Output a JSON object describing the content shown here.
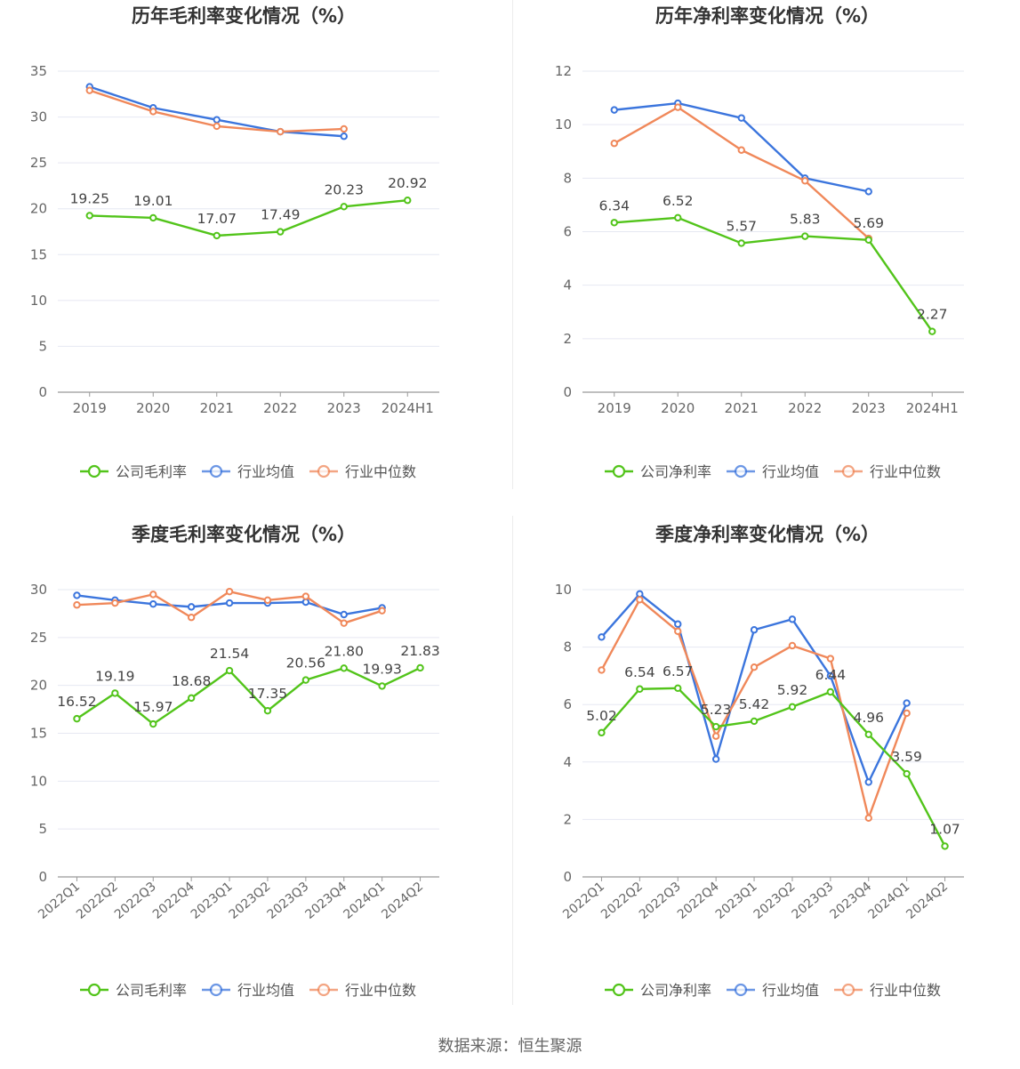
{
  "charts": [
    {
      "title": "历年毛利率变化情况（%）",
      "legend": [
        "公司毛利率",
        "行业均值",
        "行业中位数"
      ],
      "y_ticks": [
        0,
        5,
        10,
        15,
        20,
        25,
        30,
        35
      ],
      "x_labels": [
        "2019",
        "2020",
        "2021",
        "2022",
        "2023",
        "2024H1"
      ]
    },
    {
      "title": "历年净利率变化情况（%）",
      "legend": [
        "公司净利率",
        "行业均值",
        "行业中位数"
      ],
      "y_ticks": [
        0,
        2,
        4,
        6,
        8,
        10,
        12
      ],
      "x_labels": [
        "2019",
        "2020",
        "2021",
        "2022",
        "2023",
        "2024H1"
      ]
    },
    {
      "title": "季度毛利率变化情况（%）",
      "legend": [
        "公司毛利率",
        "行业均值",
        "行业中位数"
      ],
      "y_ticks": [
        0,
        5,
        10,
        15,
        20,
        25,
        30
      ],
      "x_labels": [
        "2022Q1",
        "2022Q2",
        "2022Q3",
        "2022Q4",
        "2023Q1",
        "2023Q2",
        "2023Q3",
        "2023Q4",
        "2024Q1",
        "2024Q2"
      ]
    },
    {
      "title": "季度净利率变化情况（%）",
      "legend": [
        "公司净利率",
        "行业均值",
        "行业中位数"
      ],
      "y_ticks": [
        0,
        2,
        4,
        6,
        8,
        10
      ],
      "x_labels": [
        "2022Q1",
        "2022Q2",
        "2022Q3",
        "2022Q4",
        "2023Q1",
        "2023Q2",
        "2023Q3",
        "2023Q4",
        "2024Q1",
        "2024Q2"
      ]
    }
  ],
  "colors": {
    "company": "#52c41a",
    "industry_avg": "#3b75dd",
    "industry_median": "#f0885a",
    "grid": "#e6e8f2",
    "axis": "#999999",
    "text": "#666666"
  },
  "chart_data": [
    {
      "type": "line",
      "title": "历年毛利率变化情况（%）",
      "x": [
        "2019",
        "2020",
        "2021",
        "2022",
        "2023",
        "2024H1"
      ],
      "ylim": [
        0,
        35
      ],
      "legend_position": "bottom",
      "series": [
        {
          "name": "公司毛利率",
          "values": [
            19.25,
            19.01,
            17.07,
            17.49,
            20.23,
            20.92
          ],
          "labels": [
            "19.25",
            "19.01",
            "17.07",
            "17.49",
            "20.23",
            "20.92"
          ]
        },
        {
          "name": "行业均值",
          "values": [
            33.3,
            31.0,
            29.7,
            28.4,
            27.9,
            null
          ]
        },
        {
          "name": "行业中位数",
          "values": [
            32.9,
            30.6,
            29.0,
            28.4,
            28.7,
            null
          ]
        }
      ]
    },
    {
      "type": "line",
      "title": "历年净利率变化情况（%）",
      "x": [
        "2019",
        "2020",
        "2021",
        "2022",
        "2023",
        "2024H1"
      ],
      "ylim": [
        0,
        12
      ],
      "legend_position": "bottom",
      "series": [
        {
          "name": "公司净利率",
          "values": [
            6.34,
            6.52,
            5.57,
            5.83,
            5.69,
            2.27
          ],
          "labels": [
            "6.34",
            "6.52",
            "5.57",
            "5.83",
            "5.69",
            "2.27"
          ]
        },
        {
          "name": "行业均值",
          "values": [
            10.55,
            10.8,
            10.25,
            8.0,
            7.5,
            null
          ]
        },
        {
          "name": "行业中位数",
          "values": [
            9.3,
            10.65,
            9.05,
            7.9,
            5.75,
            null
          ]
        }
      ]
    },
    {
      "type": "line",
      "title": "季度毛利率变化情况（%）",
      "x": [
        "2022Q1",
        "2022Q2",
        "2022Q3",
        "2022Q4",
        "2023Q1",
        "2023Q2",
        "2023Q3",
        "2023Q4",
        "2024Q1",
        "2024Q2"
      ],
      "ylim": [
        0,
        30
      ],
      "legend_position": "bottom",
      "series": [
        {
          "name": "公司毛利率",
          "values": [
            16.52,
            19.19,
            15.97,
            18.68,
            21.54,
            17.35,
            20.56,
            21.8,
            19.93,
            21.83
          ],
          "labels": [
            "16.52",
            "19.19",
            "15.97",
            "18.68",
            "21.54",
            "17.35",
            "20.56",
            "21.80",
            "19.93",
            "21.83"
          ]
        },
        {
          "name": "行业均值",
          "values": [
            29.4,
            28.9,
            28.5,
            28.2,
            28.6,
            28.6,
            28.7,
            27.4,
            28.1,
            null
          ]
        },
        {
          "name": "行业中位数",
          "values": [
            28.4,
            28.6,
            29.5,
            27.1,
            29.8,
            28.9,
            29.3,
            26.5,
            27.8,
            null
          ]
        }
      ]
    },
    {
      "type": "line",
      "title": "季度净利率变化情况（%）",
      "x": [
        "2022Q1",
        "2022Q2",
        "2022Q3",
        "2022Q4",
        "2023Q1",
        "2023Q2",
        "2023Q3",
        "2023Q4",
        "2024Q1",
        "2024Q2"
      ],
      "ylim": [
        0,
        10
      ],
      "legend_position": "bottom",
      "series": [
        {
          "name": "公司净利率",
          "values": [
            5.02,
            6.54,
            6.57,
            5.23,
            5.42,
            5.92,
            6.44,
            4.96,
            3.59,
            1.07
          ],
          "labels": [
            "5.02",
            "6.54",
            "6.57",
            "5.23",
            "5.42",
            "5.92",
            "6.44",
            "4.96",
            "3.59",
            "1.07"
          ]
        },
        {
          "name": "行业均值",
          "values": [
            8.35,
            9.85,
            8.8,
            4.1,
            8.6,
            8.97,
            7.0,
            3.3,
            6.05,
            null
          ]
        },
        {
          "name": "行业中位数",
          "values": [
            7.2,
            9.65,
            8.55,
            4.9,
            7.3,
            8.05,
            7.6,
            2.05,
            5.7,
            null
          ]
        }
      ]
    }
  ],
  "source": "数据来源：恒生聚源"
}
